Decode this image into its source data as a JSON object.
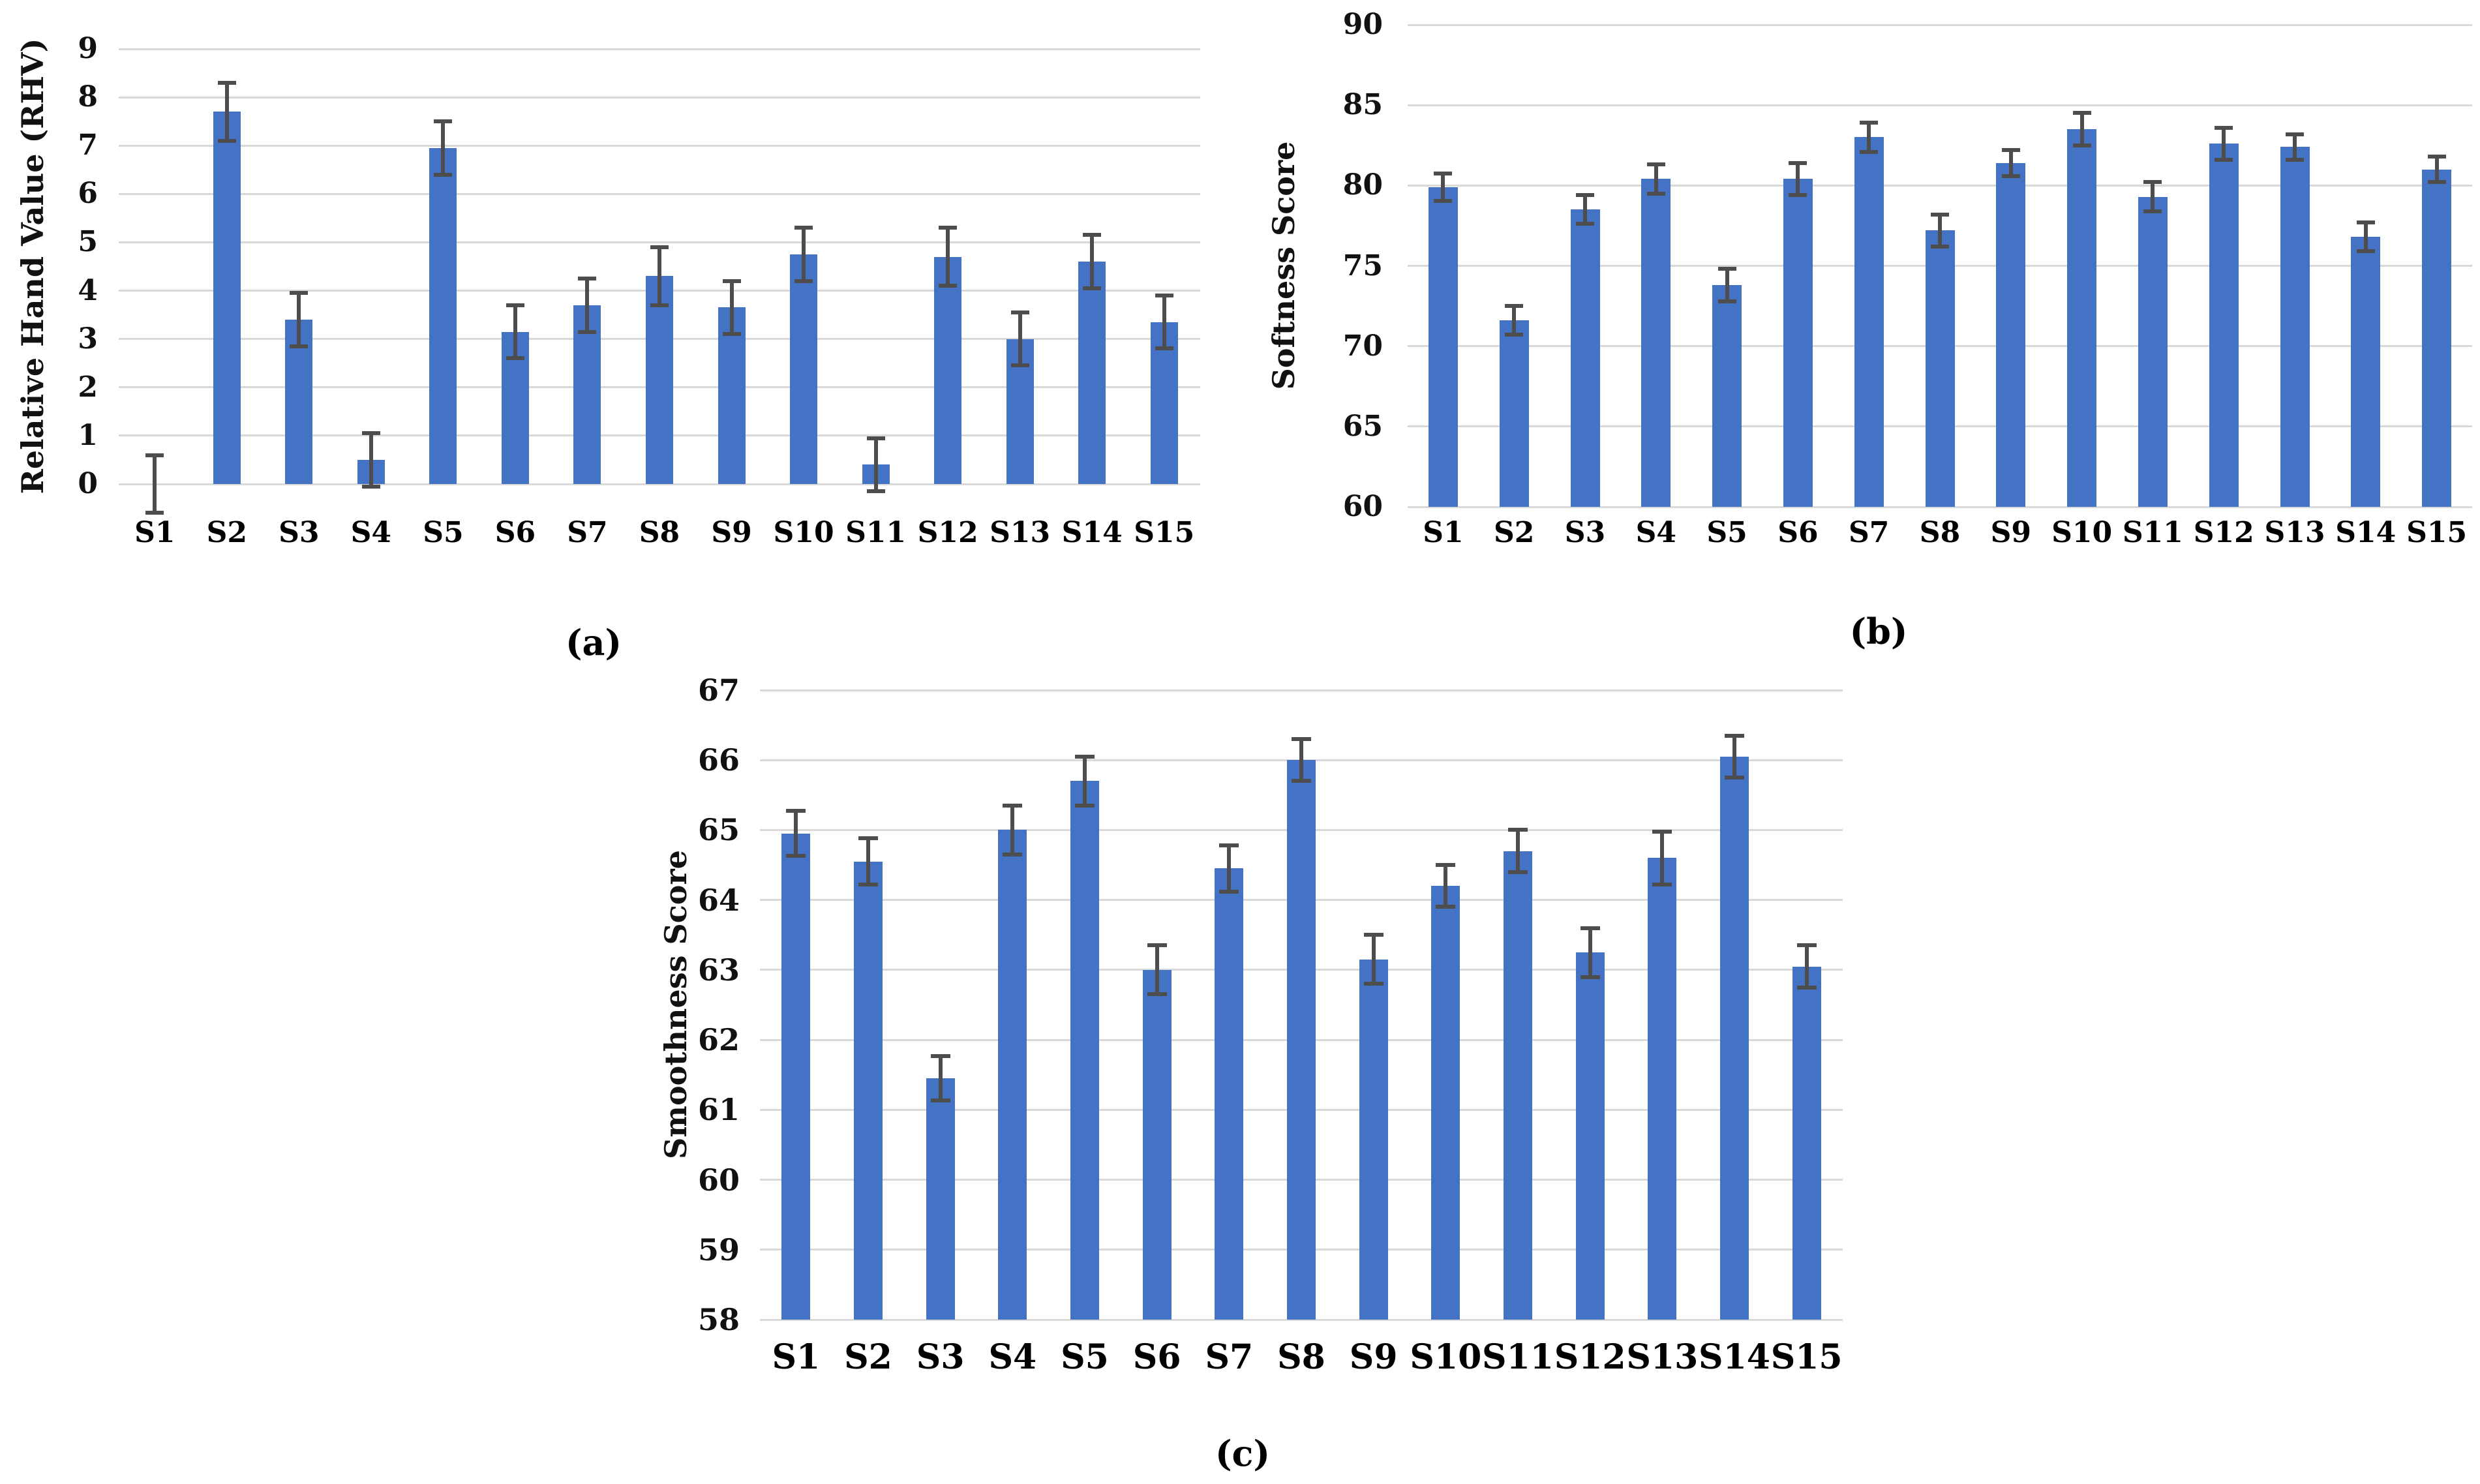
{
  "figure": {
    "background": "#ffffff",
    "description_texts": {
      "panel_a_caption": "(a)",
      "panel_b_caption": "(b)",
      "panel_c_caption": "(c)"
    }
  },
  "colors": {
    "bar": "#4472C4",
    "error_bar": "#4d4d4d",
    "gridline": "#D9D9D9",
    "text": "#111111"
  },
  "chart_data": [
    {
      "id": "a",
      "type": "bar",
      "title": "",
      "panel_label": "(a)",
      "xlabel": "",
      "ylabel": "Relative Hand Value (RHV)",
      "categories": [
        "S1",
        "S2",
        "S3",
        "S4",
        "S5",
        "S6",
        "S7",
        "S8",
        "S9",
        "S10",
        "S11",
        "S12",
        "S13",
        "S14",
        "S15"
      ],
      "values": [
        0,
        7.7,
        3.4,
        0.5,
        6.95,
        3.15,
        3.7,
        4.3,
        3.65,
        4.75,
        0.4,
        4.7,
        3.0,
        4.6,
        3.35
      ],
      "errors": [
        0.6,
        0.6,
        0.55,
        0.55,
        0.55,
        0.55,
        0.55,
        0.6,
        0.55,
        0.55,
        0.55,
        0.6,
        0.55,
        0.55,
        0.55
      ],
      "ylim": [
        0,
        9
      ],
      "yticks": [
        0,
        1,
        2,
        3,
        4,
        5,
        6,
        7,
        8,
        9
      ],
      "grid": true,
      "legend": "none",
      "error_bars": true
    },
    {
      "id": "b",
      "type": "bar",
      "title": "",
      "panel_label": "(b)",
      "xlabel": "",
      "ylabel": "Softness Score",
      "categories": [
        "S1",
        "S2",
        "S3",
        "S4",
        "S5",
        "S6",
        "S7",
        "S8",
        "S9",
        "S10",
        "S11",
        "S12",
        "S13",
        "S14",
        "S15"
      ],
      "values": [
        79.9,
        71.6,
        78.5,
        80.4,
        73.8,
        80.4,
        83.0,
        77.2,
        81.4,
        83.5,
        79.3,
        82.6,
        82.4,
        76.8,
        81.0
      ],
      "errors": [
        0.85,
        0.9,
        0.9,
        0.9,
        1.0,
        1.0,
        0.9,
        1.0,
        0.8,
        1.0,
        0.9,
        1.0,
        0.8,
        0.9,
        0.8
      ],
      "ylim": [
        60,
        90
      ],
      "yticks": [
        60,
        65,
        70,
        75,
        80,
        85,
        90
      ],
      "grid": true,
      "legend": "none",
      "error_bars": true
    },
    {
      "id": "c",
      "type": "bar",
      "title": "",
      "panel_label": "(c)",
      "xlabel": "",
      "ylabel": "Smoothness Score",
      "categories": [
        "S1",
        "S2",
        "S3",
        "S4",
        "S5",
        "S6",
        "S7",
        "S8",
        "S9",
        "S10",
        "S11",
        "S12",
        "S13",
        "S14",
        "S15"
      ],
      "values": [
        64.95,
        64.55,
        61.45,
        65.0,
        65.7,
        63.0,
        64.45,
        66.0,
        63.15,
        64.2,
        64.7,
        63.25,
        64.6,
        66.05,
        63.05
      ],
      "errors": [
        0.32,
        0.33,
        0.32,
        0.35,
        0.35,
        0.35,
        0.33,
        0.3,
        0.35,
        0.3,
        0.3,
        0.35,
        0.38,
        0.3,
        0.3
      ],
      "ylim": [
        58,
        67
      ],
      "yticks": [
        58,
        59,
        60,
        61,
        62,
        63,
        64,
        65,
        66,
        67
      ],
      "grid": true,
      "legend": "none",
      "error_bars": true
    }
  ]
}
